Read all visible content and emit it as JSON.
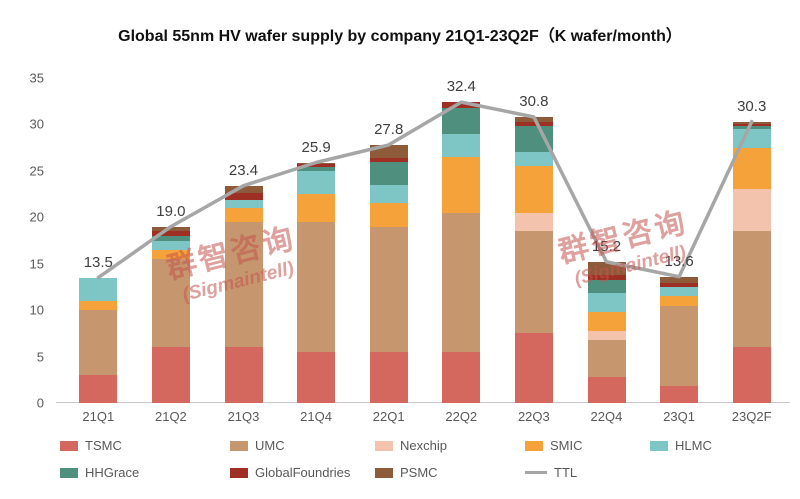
{
  "chart_data": {
    "type": "stacked-bar-with-line",
    "title": "Global 55nm HV wafer supply by company 21Q1-23Q2F（K wafer/month）",
    "categories": [
      "21Q1",
      "21Q2",
      "21Q3",
      "21Q4",
      "22Q1",
      "22Q2",
      "22Q3",
      "22Q4",
      "23Q1",
      "23Q2F"
    ],
    "series": [
      {
        "name": "TSMC",
        "color": "#d4675e",
        "values": [
          3.0,
          6.0,
          6.0,
          5.5,
          5.5,
          5.5,
          7.5,
          2.8,
          1.8,
          6.0
        ]
      },
      {
        "name": "UMC",
        "color": "#c6976e",
        "values": [
          7.0,
          9.5,
          13.5,
          14.0,
          13.5,
          15.0,
          11.0,
          4.0,
          8.7,
          12.5
        ]
      },
      {
        "name": "Nexchip",
        "color": "#f4c3ae",
        "values": [
          0,
          0,
          0,
          0,
          0,
          0,
          2.0,
          1.0,
          0,
          4.5
        ]
      },
      {
        "name": "SMIC",
        "color": "#f5a23b",
        "values": [
          1.0,
          1.0,
          1.5,
          3.0,
          2.5,
          6.0,
          5.0,
          2.0,
          1.0,
          4.5
        ]
      },
      {
        "name": "HLMC",
        "color": "#7ec5c6",
        "values": [
          2.5,
          1.0,
          0.9,
          2.5,
          2.0,
          2.5,
          1.5,
          2.0,
          1.0,
          2.0
        ]
      },
      {
        "name": "HHGrace",
        "color": "#4f8f7d",
        "values": [
          0,
          0.5,
          0,
          0.4,
          2.5,
          2.8,
          2.8,
          1.5,
          0,
          0.3
        ]
      },
      {
        "name": "GlobalFoundries",
        "color": "#9e2f24",
        "values": [
          0,
          0.5,
          0.75,
          0.3,
          0.4,
          0.6,
          0.5,
          0.5,
          0.4,
          0.3
        ]
      },
      {
        "name": "PSMC",
        "color": "#8d5b3a",
        "values": [
          0,
          0.5,
          0.75,
          0.2,
          1.4,
          0,
          0.5,
          1.4,
          0.7,
          0.2
        ]
      }
    ],
    "line": {
      "name": "TTL",
      "color": "#a6a6a6",
      "values": [
        13.5,
        19.0,
        23.4,
        25.9,
        27.8,
        32.4,
        30.8,
        15.2,
        13.6,
        30.3
      ]
    },
    "total_labels": [
      "13.5",
      "19.0",
      "23.4",
      "25.9",
      "27.8",
      "32.4",
      "30.8",
      "15.2",
      "13.6",
      "30.3"
    ],
    "ylim": [
      0,
      35
    ],
    "yticks": [
      0,
      5,
      10,
      15,
      20,
      25,
      30,
      35
    ],
    "grid": false,
    "legend_position": "bottom"
  },
  "watermark": {
    "line1": "群智咨询",
    "line2": "(Sigmaintell)"
  }
}
